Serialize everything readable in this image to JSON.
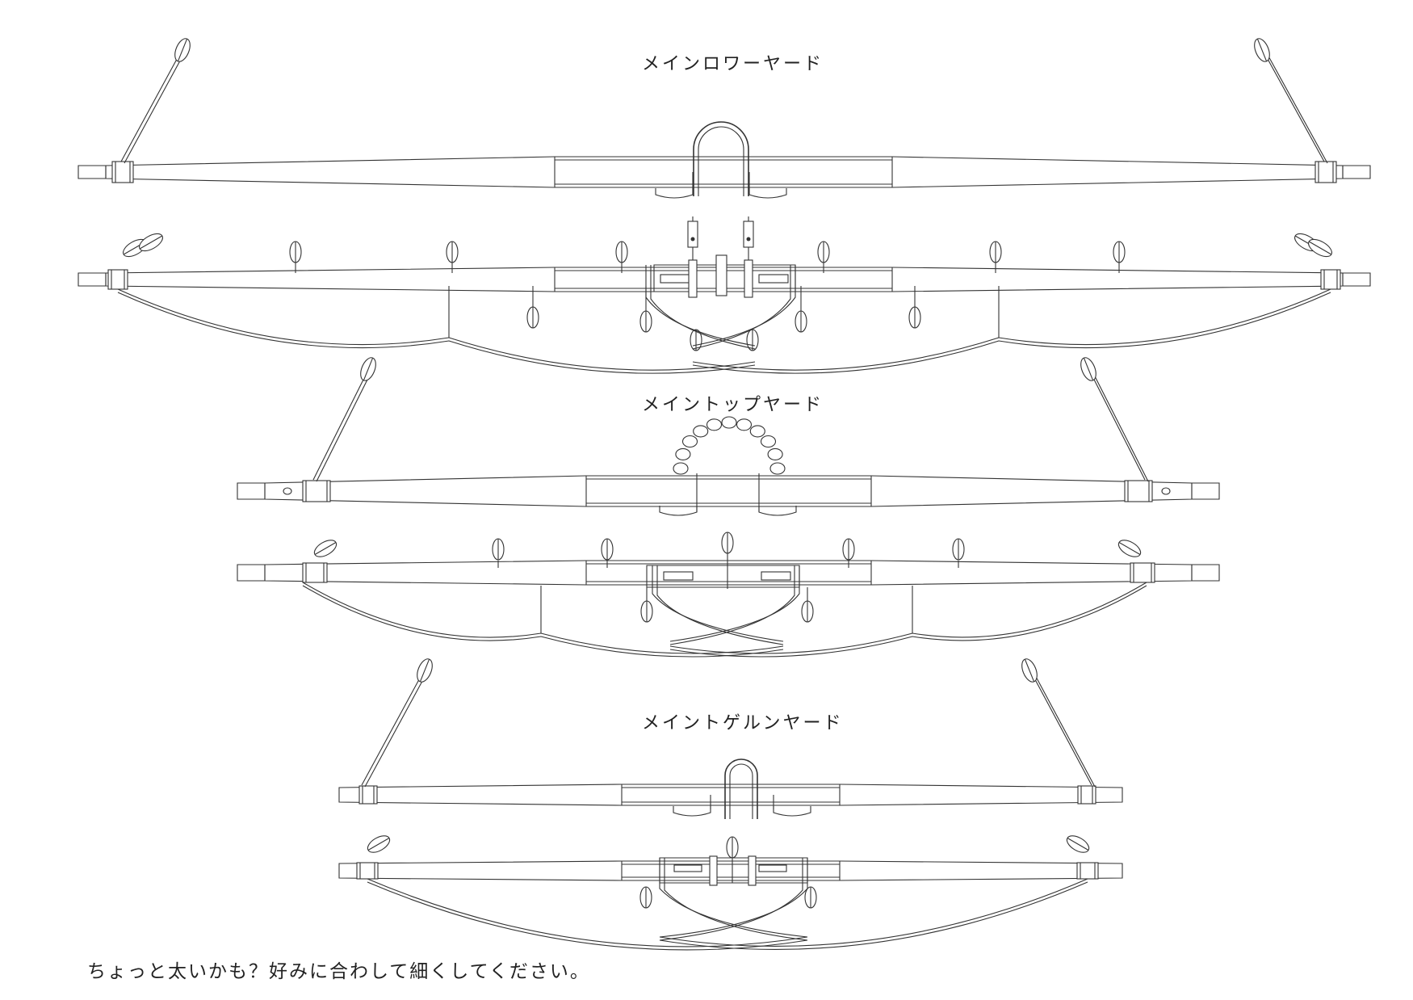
{
  "diagram": {
    "sections": [
      {
        "id": "main-lower-yard",
        "title": "メインロワーヤード"
      },
      {
        "id": "main-top-yard",
        "title": "メイントップヤード"
      },
      {
        "id": "main-topgallant-yard",
        "title": "メイントゲルンヤード"
      }
    ],
    "note": "ちょっと太いかも？好みに合わして細くしてください。"
  },
  "colors": {
    "line": "#333333",
    "background": "#ffffff"
  }
}
